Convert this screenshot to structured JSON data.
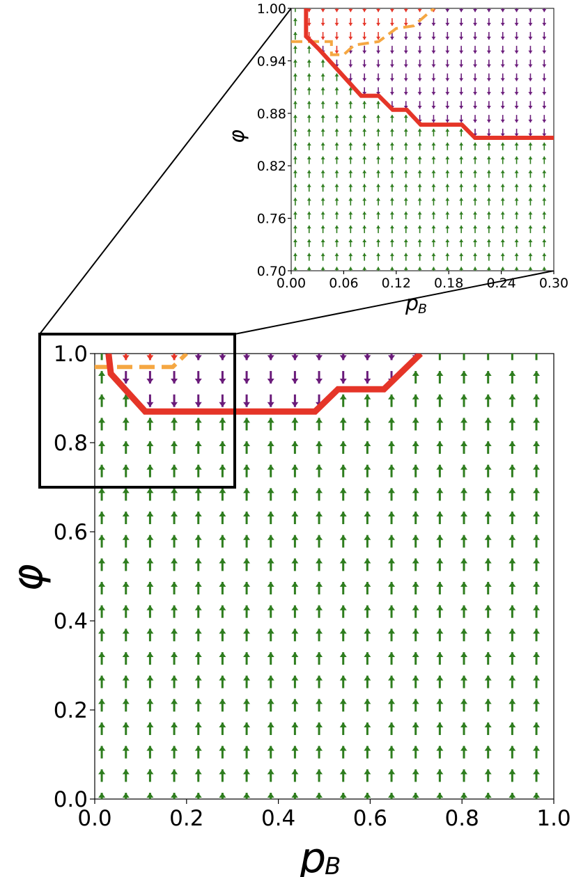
{
  "chart_data": [
    {
      "name": "main",
      "type": "quiver",
      "xlabel": "p",
      "xlabel_sub": "B",
      "ylabel": "φ",
      "xlim": [
        0.0,
        1.0
      ],
      "ylim": [
        0.0,
        1.0
      ],
      "xticks": [
        "0.0",
        "0.2",
        "0.4",
        "0.6",
        "0.8",
        "1.0"
      ],
      "yticks": [
        "0.0",
        "0.2",
        "0.4",
        "0.6",
        "0.8",
        "1.0"
      ],
      "grid": false,
      "arrow_grid": {
        "x_start": 0.0153,
        "x_step": 0.0526,
        "nx": 19,
        "y_start": 0.0,
        "y_step": 0.0526,
        "ny": 20
      },
      "arrow_colors": {
        "up": "#2e7d1e",
        "down": "#6a1b7a",
        "down_red": "#e53528",
        "up_blue": "#1a1fbf"
      },
      "boundary_line": {
        "color": "#e53528",
        "points": [
          [
            0.03,
            1.0
          ],
          [
            0.035,
            0.955
          ],
          [
            0.11,
            0.87
          ],
          [
            0.48,
            0.87
          ],
          [
            0.53,
            0.92
          ],
          [
            0.63,
            0.92
          ],
          [
            0.71,
            1.0
          ]
        ]
      },
      "dashed_line": {
        "color": "#f5a742",
        "points": [
          [
            0.0,
            0.97
          ],
          [
            0.17,
            0.97
          ],
          [
            0.2,
            1.0
          ]
        ]
      },
      "zoom_box": {
        "xlim": [
          0.0,
          0.3
        ],
        "ylim": [
          0.7,
          1.0
        ]
      }
    },
    {
      "name": "inset",
      "type": "quiver",
      "xlabel": "p",
      "xlabel_sub": "B",
      "ylabel": "φ",
      "xlim": [
        0.0,
        0.3
      ],
      "ylim": [
        0.7,
        1.0
      ],
      "xticks": [
        "0.00",
        "0.06",
        "0.12",
        "0.18",
        "0.24",
        "0.30"
      ],
      "yticks": [
        "0.70",
        "0.76",
        "0.82",
        "0.88",
        "0.94",
        "1.00"
      ],
      "grid": false,
      "arrow_grid": {
        "x_start": 0.0047,
        "x_step": 0.0158,
        "nx": 19,
        "y_start": 0.7,
        "y_step": 0.0158,
        "ny": 20
      },
      "boundary_line": {
        "color": "#e53528",
        "points": [
          [
            0.017,
            1.0
          ],
          [
            0.017,
            0.968
          ],
          [
            0.032,
            0.953
          ],
          [
            0.08,
            0.9
          ],
          [
            0.1,
            0.9
          ],
          [
            0.116,
            0.884
          ],
          [
            0.132,
            0.884
          ],
          [
            0.148,
            0.867
          ],
          [
            0.195,
            0.867
          ],
          [
            0.21,
            0.852
          ],
          [
            0.3,
            0.852
          ]
        ]
      },
      "dashed_line": {
        "color": "#f5a742",
        "points": [
          [
            0.0,
            0.962
          ],
          [
            0.046,
            0.962
          ],
          [
            0.046,
            0.947
          ],
          [
            0.06,
            0.947
          ],
          [
            0.072,
            0.958
          ],
          [
            0.1,
            0.962
          ],
          [
            0.12,
            0.977
          ],
          [
            0.14,
            0.98
          ],
          [
            0.163,
            1.0
          ]
        ]
      }
    }
  ]
}
